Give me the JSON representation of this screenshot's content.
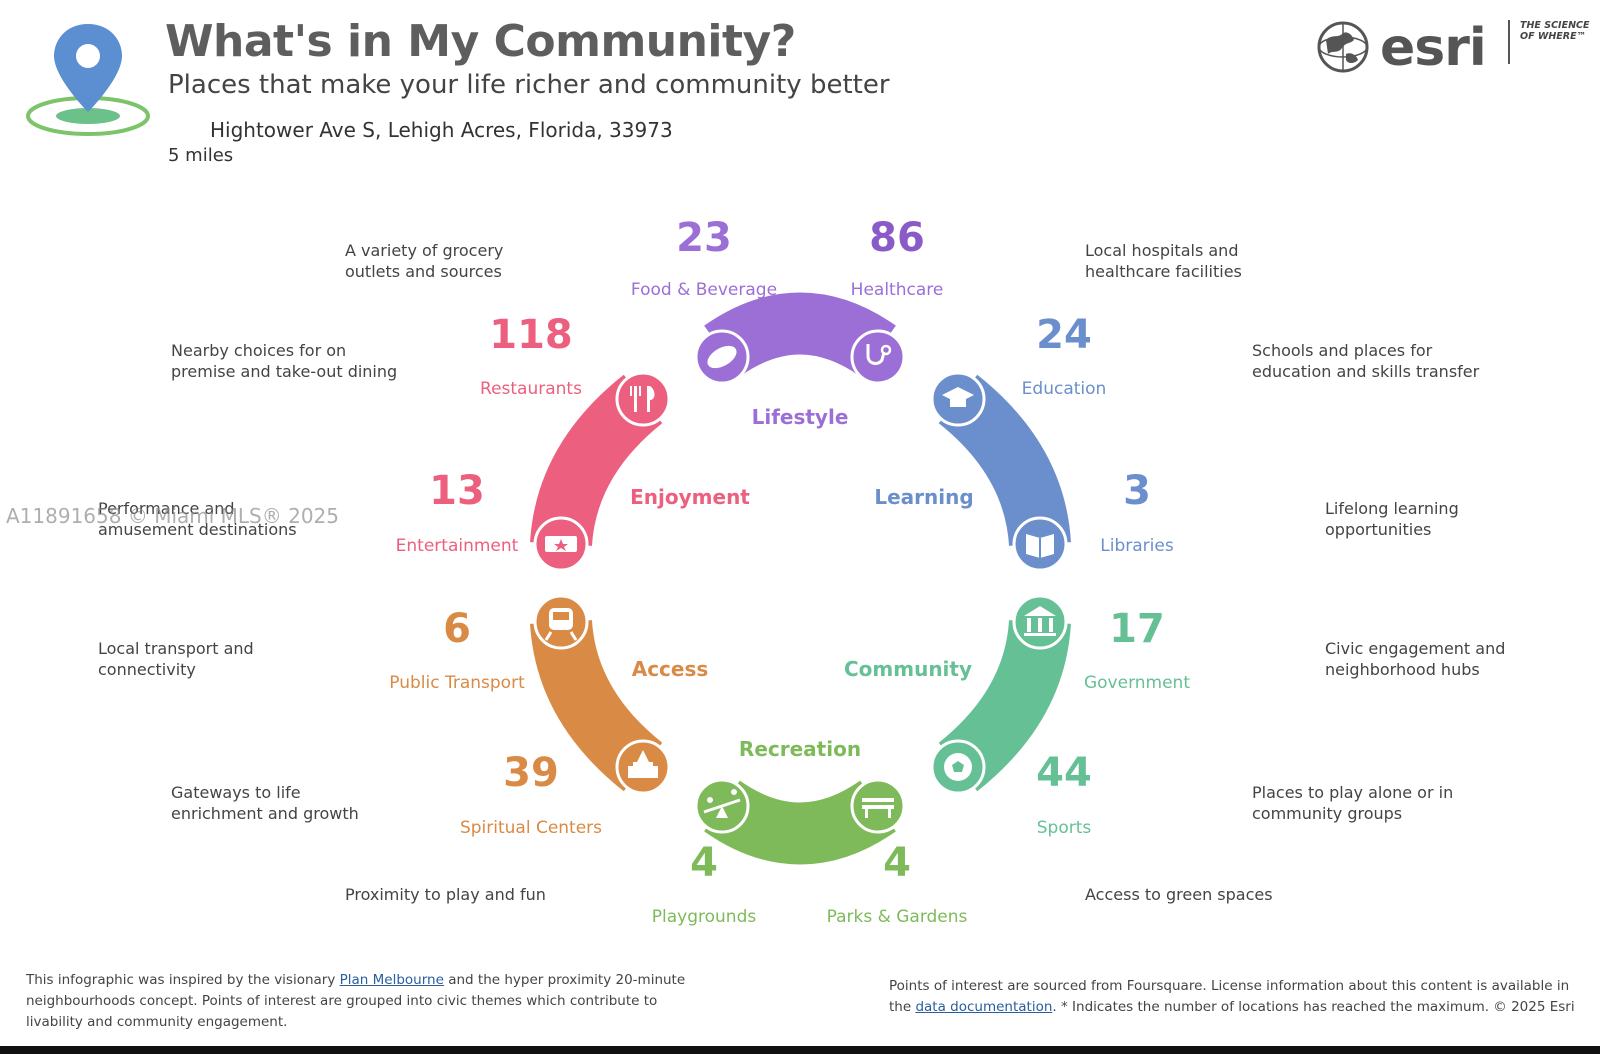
{
  "header": {
    "title": "What's in My Community?",
    "subtitle": "Places that make your life richer and community better",
    "address": "Hightower Ave S, Lehigh Acres, Florida, 33973",
    "radius": "5 miles"
  },
  "brand": {
    "name": "esri",
    "tagline": "THE SCIENCE OF WHERE™"
  },
  "watermark": "A11891658 © Miami MLS® 2025",
  "themes": {
    "lifestyle": "Lifestyle",
    "learning": "Learning",
    "community": "Community",
    "recreation": "Recreation",
    "access": "Access",
    "enjoyment": "Enjoyment"
  },
  "categories": {
    "food": {
      "count": "23",
      "label": "Food & Beverage",
      "desc1": "A variety of grocery",
      "desc2": "outlets and sources"
    },
    "health": {
      "count": "86",
      "label": "Healthcare",
      "desc1": "Local hospitals and",
      "desc2": "healthcare facilities"
    },
    "education": {
      "count": "24",
      "label": "Education",
      "desc1": "Schools and places for",
      "desc2": "education and skills transfer"
    },
    "libraries": {
      "count": "3",
      "label": "Libraries",
      "desc1": "Lifelong learning",
      "desc2": "opportunities"
    },
    "government": {
      "count": "17",
      "label": "Government",
      "desc1": "Civic engagement and",
      "desc2": "neighborhood hubs"
    },
    "sports": {
      "count": "44",
      "label": "Sports",
      "desc1": "Places to play alone or in",
      "desc2": "community groups"
    },
    "parks": {
      "count": "4",
      "label": "Parks & Gardens",
      "desc1": "Access to green spaces"
    },
    "playgrounds": {
      "count": "4",
      "label": "Playgrounds",
      "desc1": "Proximity to play and fun"
    },
    "spiritual": {
      "count": "39",
      "label": "Spiritual Centers",
      "desc1": "Gateways to life",
      "desc2": "enrichment and growth"
    },
    "transport": {
      "count": "6",
      "label": "Public Transport",
      "desc1": "Local transport and",
      "desc2": "connectivity"
    },
    "entertainment": {
      "count": "13",
      "label": "Entertainment",
      "desc1": "Performance and",
      "desc2": "amusement destinations"
    },
    "restaurants": {
      "count": "118",
      "label": "Restaurants",
      "desc1": "Nearby choices for on",
      "desc2": "premise and take-out dining"
    }
  },
  "colors": {
    "lifestyle": "#9b6fd6",
    "learning": "#6b8fcc",
    "community": "#66c095",
    "recreation": "#7fba5a",
    "access": "#d98a45",
    "enjoyment": "#ec5f7e",
    "health_num": "#8a5ac8"
  },
  "footer": {
    "left_pre": "This infographic was inspired by the visionary ",
    "left_link": "Plan Melbourne",
    "left_post": " and the hyper proximity 20-minute neighbourhoods concept. Points of interest are grouped into civic themes which contribute to livability and community engagement.",
    "right_pre": "Points of interest are sourced from Foursquare. License information about this content is available in the ",
    "right_link": "data documentation",
    "right_post": ". * Indicates the number of locations has reached the maximum. © 2025 Esri"
  }
}
